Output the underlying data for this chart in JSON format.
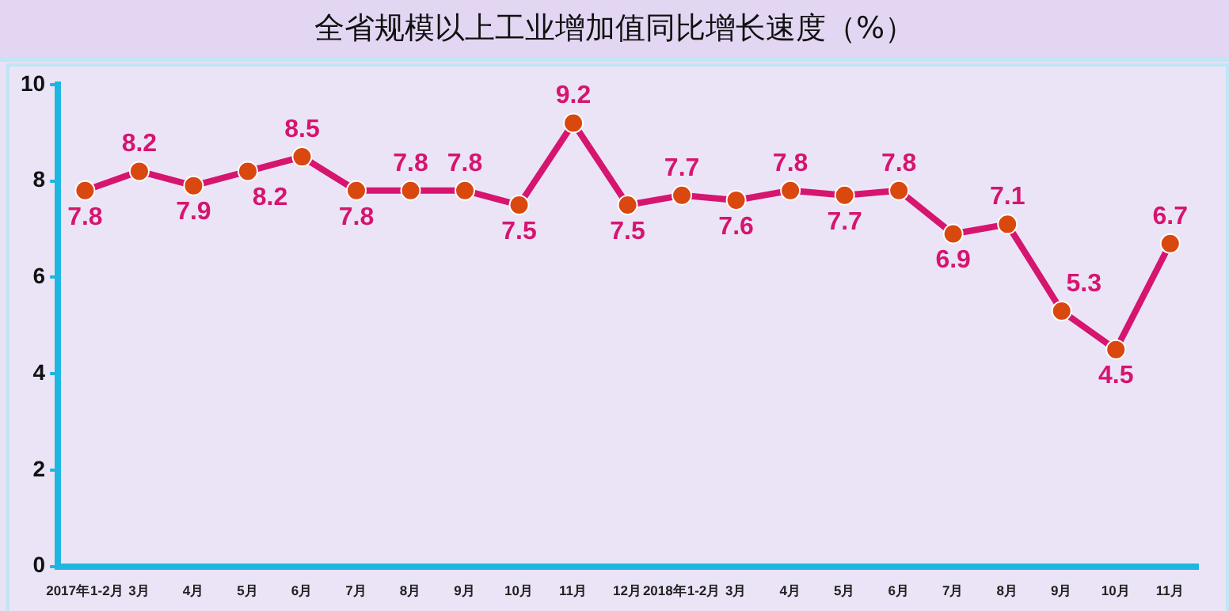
{
  "chart_data": {
    "type": "line",
    "title": "全省规模以上工业增加值同比增长速度（%）",
    "categories": [
      "2017年1-2月",
      "3月",
      "4月",
      "5月",
      "6月",
      "7月",
      "8月",
      "9月",
      "10月",
      "11月",
      "12月",
      "2018年1-2月",
      "3月",
      "4月",
      "5月",
      "6月",
      "7月",
      "8月",
      "9月",
      "10月",
      "11月"
    ],
    "series": [
      {
        "color": "#d6156f",
        "values": [
          7.8,
          8.2,
          7.9,
          8.2,
          8.5,
          7.8,
          7.8,
          7.8,
          7.5,
          9.2,
          7.5,
          7.7,
          7.6,
          7.8,
          7.7,
          7.8,
          6.9,
          7.1,
          5.3,
          4.5,
          6.7
        ]
      }
    ],
    "ylim": [
      0,
      10
    ],
    "yticks": [
      0,
      2,
      4,
      6,
      8,
      10
    ],
    "grid": false,
    "legend": false,
    "marker": "circle",
    "line_style": "solid",
    "data_labels": true
  }
}
